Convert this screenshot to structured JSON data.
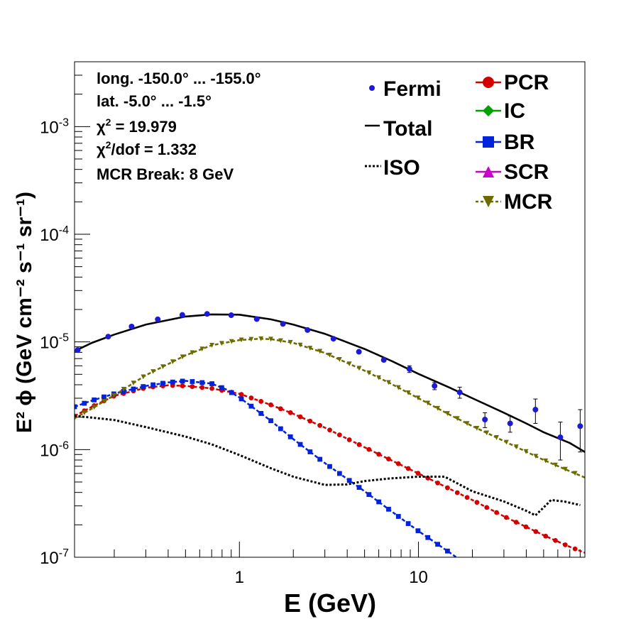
{
  "chart_data": {
    "type": "line",
    "xlabel": "E (GeV)",
    "ylabel": "E² ϕ (GeV cm⁻² s⁻¹ sr⁻¹)",
    "x_scale": "log",
    "y_scale": "log",
    "xlim": [
      0.12,
      85
    ],
    "ylim": [
      1e-07,
      0.004
    ],
    "x_tick_labels": [
      {
        "value": 1,
        "label": "1"
      },
      {
        "value": 10,
        "label": "10"
      }
    ],
    "y_tick_labels": [
      {
        "value": 1e-07,
        "base": "10",
        "exp": "-7"
      },
      {
        "value": 1e-06,
        "base": "10",
        "exp": "-6"
      },
      {
        "value": 1e-05,
        "base": "10",
        "exp": "-5"
      },
      {
        "value": 0.0001,
        "base": "10",
        "exp": "-4"
      },
      {
        "value": 0.001,
        "base": "10",
        "exp": "-3"
      }
    ],
    "info": {
      "longitude": "long. -150.0° ... -155.0°",
      "latitude": "lat. -5.0° ... -1.5°",
      "chi2_symbol": "χ",
      "chi2_sup": "2",
      "chi2_value": " = 19.979",
      "chi2dof_sup": "2",
      "chi2dof_value": "/dof = 1.332",
      "break": "MCR Break:  8 GeV"
    },
    "legend_left": [
      {
        "label": "Fermi",
        "color": "#1b1bd6",
        "marker": "dot"
      },
      {
        "label": "Total",
        "color": "#000000",
        "marker": "line"
      },
      {
        "label": "ISO",
        "color": "#000000",
        "marker": "dotted"
      }
    ],
    "legend_right": [
      {
        "label": "PCR",
        "color": "#d40000",
        "marker": "circle"
      },
      {
        "label": "IC",
        "color": "#00a000",
        "marker": "diamond"
      },
      {
        "label": "BR",
        "color": "#0022dd",
        "marker": "square"
      },
      {
        "label": "SCR",
        "color": "#cc00cc",
        "marker": "triangle-up"
      },
      {
        "label": "MCR",
        "color": "#6b6b00",
        "marker": "triangle-down"
      }
    ],
    "fermi": {
      "x": [
        0.125,
        0.185,
        0.25,
        0.35,
        0.48,
        0.66,
        0.9,
        1.25,
        1.75,
        2.4,
        3.35,
        4.65,
        6.4,
        8.9,
        12.3,
        17.0,
        23.5,
        32.5,
        45.0,
        62.0,
        80.0
      ],
      "y": [
        8.4e-06,
        1.12e-05,
        1.39e-05,
        1.62e-05,
        1.78e-05,
        1.82e-05,
        1.77e-05,
        1.63e-05,
        1.47e-05,
        1.29e-05,
        1.07e-05,
        8.1e-06,
        6.8e-06,
        5.6e-06,
        3.9e-06,
        3.4e-06,
        1.9e-06,
        1.75e-06,
        2.35e-06,
        1.3e-06,
        1.65e-06
      ],
      "err_low": [
        0,
        0,
        0,
        0,
        0,
        0,
        0,
        0,
        0,
        0,
        0,
        0,
        0,
        4e-07,
        3e-07,
        4e-07,
        3e-07,
        3e-07,
        6e-07,
        5e-07,
        7e-07
      ],
      "err_high": [
        0,
        0,
        0,
        0,
        0,
        0,
        0,
        0,
        0,
        0,
        0,
        0,
        0,
        4e-07,
        3e-07,
        4e-07,
        3e-07,
        3e-07,
        6e-07,
        5e-07,
        7e-07
      ]
    },
    "total": {
      "x": [
        0.12,
        0.15,
        0.2,
        0.3,
        0.5,
        0.7,
        1.0,
        1.5,
        2.0,
        3.0,
        5.0,
        7.0,
        10,
        15,
        20,
        30,
        40,
        50,
        70,
        85
      ],
      "y": [
        8.2e-06,
        9.8e-06,
        1.17e-05,
        1.45e-05,
        1.72e-05,
        1.8e-05,
        1.79e-05,
        1.62e-05,
        1.45e-05,
        1.19e-05,
        8.6e-06,
        6.7e-06,
        5.05e-06,
        3.75e-06,
        3e-06,
        2.2e-06,
        1.75e-06,
        1.45e-06,
        1.15e-06,
        9.5e-07
      ]
    },
    "iso": {
      "x": [
        0.12,
        0.15,
        0.2,
        0.3,
        0.5,
        0.7,
        1.0,
        1.5,
        2.0,
        3.0,
        4.0,
        5.0,
        7.0,
        10,
        14,
        20,
        30,
        40,
        45,
        50,
        55,
        65,
        80
      ],
      "y": [
        2.05e-06,
        1.98e-06,
        1.88e-06,
        1.62e-06,
        1.32e-06,
        1.12e-06,
        8.9e-07,
        6.7e-07,
        5.6e-07,
        4.7e-07,
        4.75e-07,
        5.1e-07,
        5.4e-07,
        5.6e-07,
        5.6e-07,
        4.1e-07,
        3.3e-07,
        2.7e-07,
        2.45e-07,
        2.9e-07,
        3.4e-07,
        3.3e-07,
        3.05e-07
      ]
    },
    "series": [
      {
        "name": "PCR",
        "x": [
          0.12,
          0.15,
          0.2,
          0.3,
          0.4,
          0.5,
          0.7,
          1.0,
          1.5,
          2.0,
          3.0,
          5.0,
          7.0,
          10,
          15,
          20,
          30,
          50,
          70,
          85
        ],
        "y": [
          2.05e-06,
          2.5e-06,
          3.15e-06,
          3.75e-06,
          3.95e-06,
          3.9e-06,
          3.7e-06,
          3.3e-06,
          2.6e-06,
          2.15e-06,
          1.6e-06,
          1.05e-06,
          8e-07,
          6e-07,
          4.3e-07,
          3.4e-07,
          2.4e-07,
          1.6e-07,
          1.25e-07,
          1.1e-07
        ]
      },
      {
        "name": "BR",
        "x": [
          0.12,
          0.15,
          0.2,
          0.3,
          0.4,
          0.5,
          0.7,
          0.85,
          1.0,
          1.5,
          2.0,
          3.0,
          5.0,
          7.0,
          10,
          15,
          17
        ],
        "y": [
          2.5e-06,
          2.85e-06,
          3.3e-06,
          3.9e-06,
          4.2e-06,
          4.35e-06,
          4.1e-06,
          3.6e-06,
          3.05e-06,
          1.85e-06,
          1.25e-06,
          7.5e-07,
          4.1e-07,
          2.7e-07,
          1.75e-07,
          1.1e-07,
          9.5e-08
        ]
      },
      {
        "name": "MCR",
        "x": [
          0.12,
          0.15,
          0.2,
          0.3,
          0.5,
          0.7,
          1.0,
          1.3,
          1.5,
          2.0,
          3.0,
          5.0,
          7.0,
          10,
          15,
          20,
          30,
          50,
          70,
          85
        ],
        "y": [
          1.95e-06,
          2.4e-06,
          3.2e-06,
          4.9e-06,
          7.5e-06,
          9.3e-06,
          1.04e-05,
          1.07e-05,
          1.06e-05,
          9.8e-06,
          7.9e-06,
          5.4e-06,
          4.1e-06,
          3e-06,
          2.1e-06,
          1.65e-06,
          1.2e-06,
          8e-07,
          6.3e-07,
          5.5e-07
        ]
      }
    ]
  }
}
